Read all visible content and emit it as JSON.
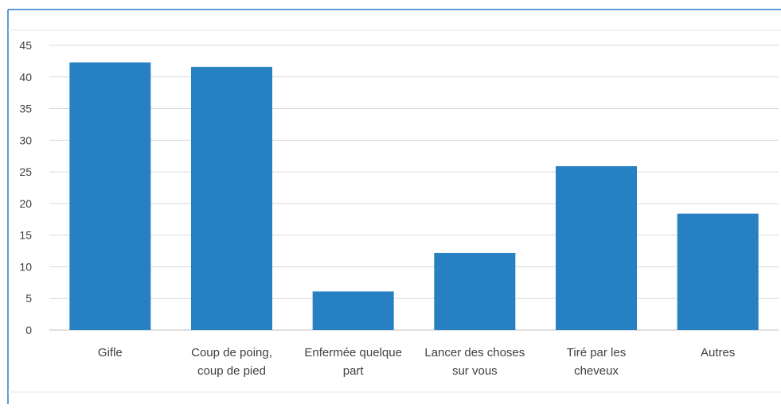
{
  "chart_data": {
    "type": "bar",
    "categories": [
      [
        "Gifle"
      ],
      [
        "Coup de poing,",
        "coup de pied"
      ],
      [
        "Enfermée quelque",
        "part"
      ],
      [
        "Lancer des choses",
        "sur vous"
      ],
      [
        "Tiré par les",
        "cheveux"
      ],
      [
        "Autres"
      ]
    ],
    "values": [
      42.3,
      41.6,
      6.1,
      12.2,
      25.9,
      18.4
    ],
    "ylim": [
      0,
      45
    ],
    "yticks": [
      "0",
      "5",
      "10",
      "15",
      "20",
      "25",
      "30",
      "35",
      "40",
      "45"
    ],
    "grid": true,
    "bar_color": "#2680c2",
    "grid_color": "#d9d9d9",
    "title": "",
    "xlabel": "",
    "ylabel": ""
  }
}
